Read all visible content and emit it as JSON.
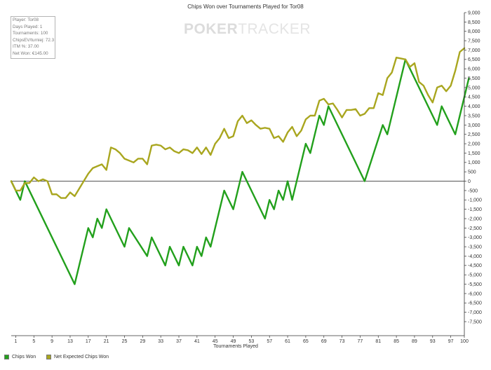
{
  "chart_data": {
    "type": "line",
    "title": "Chips Won over Tournaments Played for Tor08",
    "xlabel": "Tournaments Played",
    "ylabel": "",
    "xlim": [
      0,
      100
    ],
    "ylim": [
      -7500,
      9000
    ],
    "grid": false,
    "zero_line": true,
    "legend_position": "bottom-left",
    "x_ticks": [
      1,
      5,
      9,
      13,
      17,
      21,
      25,
      29,
      33,
      37,
      41,
      45,
      49,
      53,
      57,
      61,
      65,
      69,
      73,
      77,
      81,
      85,
      89,
      93,
      97,
      100
    ],
    "y_ticks": [
      9000,
      8500,
      8000,
      7500,
      7000,
      6500,
      6000,
      5500,
      5000,
      4500,
      4000,
      3500,
      3000,
      2500,
      2000,
      1500,
      1000,
      500,
      0,
      -500,
      -1000,
      -1500,
      -2000,
      -2500,
      -3000,
      -3500,
      -4000,
      -4500,
      -5000,
      -5500,
      -6000,
      -6500,
      -7000,
      -7500
    ],
    "y_tick_labels": [
      "9,000",
      "8,500",
      "8,000",
      "7,500",
      "7,000",
      "6,500",
      "6,000",
      "5,500",
      "5,000",
      "4,500",
      "4,000",
      "3,500",
      "3,000",
      "2,500",
      "2,000",
      "1,500",
      "1,000",
      "500",
      "0",
      "-500",
      "-1,000",
      "-1,500",
      "-2,000",
      "-2,500",
      "-3,000",
      "-3,500",
      "-4,000",
      "-4,500",
      "-5,000",
      "-5,500",
      "-6,000",
      "-6,500",
      "-7,000",
      "-7,500"
    ],
    "series": [
      {
        "name": "Chips Won",
        "color": "#22a01c",
        "points": [
          [
            0,
            0
          ],
          [
            2,
            -1000
          ],
          [
            3,
            0
          ],
          [
            14,
            -5500
          ],
          [
            17,
            -2500
          ],
          [
            18,
            -3000
          ],
          [
            19,
            -2000
          ],
          [
            20,
            -2500
          ],
          [
            21,
            -1500
          ],
          [
            25,
            -3500
          ],
          [
            26,
            -2500
          ],
          [
            30,
            -4000
          ],
          [
            31,
            -3000
          ],
          [
            34,
            -4500
          ],
          [
            35,
            -3500
          ],
          [
            37,
            -4500
          ],
          [
            38,
            -3500
          ],
          [
            40,
            -4500
          ],
          [
            41,
            -3500
          ],
          [
            42,
            -4000
          ],
          [
            43,
            -3000
          ],
          [
            44,
            -3500
          ],
          [
            47,
            -500
          ],
          [
            49,
            -1500
          ],
          [
            51,
            500
          ],
          [
            56,
            -2000
          ],
          [
            57,
            -1000
          ],
          [
            58,
            -1500
          ],
          [
            59,
            -500
          ],
          [
            60,
            -1000
          ],
          [
            61,
            0
          ],
          [
            62,
            -1000
          ],
          [
            65,
            2000
          ],
          [
            66,
            1500
          ],
          [
            68,
            3500
          ],
          [
            69,
            3000
          ],
          [
            70,
            4000
          ],
          [
            78,
            0
          ],
          [
            82,
            3000
          ],
          [
            83,
            2500
          ],
          [
            87,
            6500
          ],
          [
            94,
            3000
          ],
          [
            95,
            4000
          ],
          [
            98,
            2500
          ],
          [
            101,
            5500
          ]
        ]
      },
      {
        "name": "Net Expected Chips Won",
        "color": "#a9a61f",
        "points": [
          [
            0,
            0
          ],
          [
            1,
            -500
          ],
          [
            2,
            -500
          ],
          [
            3,
            -100
          ],
          [
            4,
            -100
          ],
          [
            5,
            200
          ],
          [
            6,
            0
          ],
          [
            7,
            100
          ],
          [
            8,
            0
          ],
          [
            9,
            -700
          ],
          [
            10,
            -700
          ],
          [
            11,
            -900
          ],
          [
            12,
            -900
          ],
          [
            13,
            -600
          ],
          [
            14,
            -800
          ],
          [
            15,
            -400
          ],
          [
            16,
            0
          ],
          [
            17,
            400
          ],
          [
            18,
            700
          ],
          [
            19,
            800
          ],
          [
            20,
            900
          ],
          [
            21,
            600
          ],
          [
            22,
            1800
          ],
          [
            23,
            1700
          ],
          [
            24,
            1500
          ],
          [
            25,
            1200
          ],
          [
            26,
            1100
          ],
          [
            27,
            1000
          ],
          [
            28,
            1200
          ],
          [
            29,
            1200
          ],
          [
            30,
            900
          ],
          [
            31,
            1900
          ],
          [
            32,
            1950
          ],
          [
            33,
            1900
          ],
          [
            34,
            1700
          ],
          [
            35,
            1800
          ],
          [
            36,
            1600
          ],
          [
            37,
            1500
          ],
          [
            38,
            1700
          ],
          [
            39,
            1650
          ],
          [
            40,
            1500
          ],
          [
            41,
            1800
          ],
          [
            42,
            1450
          ],
          [
            43,
            1800
          ],
          [
            44,
            1400
          ],
          [
            45,
            2000
          ],
          [
            46,
            2300
          ],
          [
            47,
            2800
          ],
          [
            48,
            2300
          ],
          [
            49,
            2400
          ],
          [
            50,
            3200
          ],
          [
            51,
            3500
          ],
          [
            52,
            3100
          ],
          [
            53,
            3250
          ],
          [
            54,
            3000
          ],
          [
            55,
            2800
          ],
          [
            56,
            2850
          ],
          [
            57,
            2800
          ],
          [
            58,
            2300
          ],
          [
            59,
            2400
          ],
          [
            60,
            2100
          ],
          [
            61,
            2600
          ],
          [
            62,
            2900
          ],
          [
            63,
            2400
          ],
          [
            64,
            2700
          ],
          [
            65,
            3300
          ],
          [
            66,
            3500
          ],
          [
            67,
            3500
          ],
          [
            68,
            4300
          ],
          [
            69,
            4400
          ],
          [
            70,
            4100
          ],
          [
            71,
            4150
          ],
          [
            72,
            3800
          ],
          [
            73,
            3400
          ],
          [
            74,
            3800
          ],
          [
            75,
            3800
          ],
          [
            76,
            3850
          ],
          [
            77,
            3500
          ],
          [
            78,
            3600
          ],
          [
            79,
            3900
          ],
          [
            80,
            3900
          ],
          [
            81,
            4700
          ],
          [
            82,
            4600
          ],
          [
            83,
            5500
          ],
          [
            84,
            5800
          ],
          [
            85,
            6600
          ],
          [
            86,
            6550
          ],
          [
            87,
            6500
          ],
          [
            88,
            6100
          ],
          [
            89,
            6300
          ],
          [
            90,
            5300
          ],
          [
            91,
            5100
          ],
          [
            92,
            4600
          ],
          [
            93,
            4200
          ],
          [
            94,
            5000
          ],
          [
            95,
            5100
          ],
          [
            96,
            4800
          ],
          [
            97,
            5100
          ],
          [
            98,
            5900
          ],
          [
            99,
            6900
          ],
          [
            100,
            7100
          ]
        ]
      }
    ]
  },
  "info_box": {
    "lines": [
      "Player: Tor08",
      "Days Played: 1",
      "Tournaments: 100",
      "ChipsEV/turniej: 72.3",
      "ITM %: 37.00",
      "Net Won: €145.00"
    ]
  },
  "watermark": {
    "brand_main": "POKER",
    "brand_rest": "TRACKER"
  },
  "colors": {
    "axis": "#333333",
    "zero_line": "#555555"
  }
}
